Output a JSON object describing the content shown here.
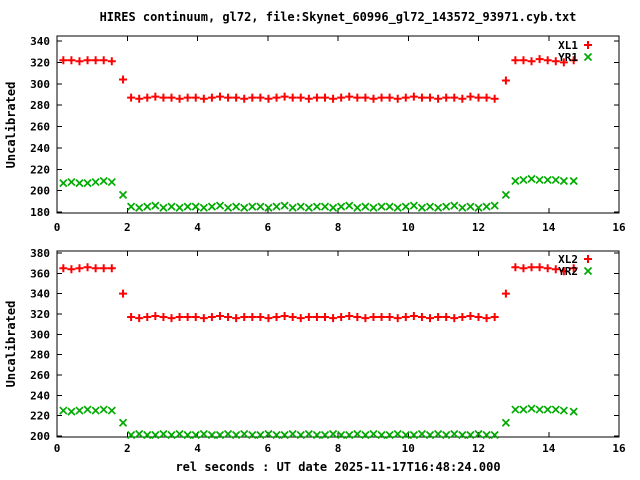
{
  "title": "HIRES continuum, gl72, file:Skynet_60996_gl72_143572_93971.cyb.txt",
  "xlabel": "rel seconds : UT date 2025-11-17T16:48:24.000",
  "colors": {
    "red": "#ff0000",
    "green": "#00aa00",
    "axis": "#000000",
    "background": "#ffffff"
  },
  "chart_data": [
    {
      "type": "scatter",
      "panel": "top",
      "ylabel": "Uncalibrated",
      "xlim": [
        0,
        16
      ],
      "ylim": [
        180,
        340
      ],
      "xticks": [
        0,
        2,
        4,
        6,
        8,
        10,
        12,
        14,
        16
      ],
      "yticks": [
        180,
        200,
        220,
        240,
        260,
        280,
        300,
        320,
        340
      ],
      "grid": false,
      "legend_position": "top-right-inside",
      "x": [
        0.18,
        0.41,
        0.64,
        0.87,
        1.1,
        1.33,
        1.56,
        1.88,
        2.11,
        2.34,
        2.57,
        2.8,
        3.03,
        3.26,
        3.49,
        3.72,
        3.95,
        4.18,
        4.41,
        4.64,
        4.87,
        5.1,
        5.33,
        5.56,
        5.79,
        6.02,
        6.25,
        6.48,
        6.71,
        6.94,
        7.17,
        7.4,
        7.63,
        7.86,
        8.09,
        8.32,
        8.55,
        8.78,
        9.01,
        9.24,
        9.47,
        9.7,
        9.93,
        10.16,
        10.39,
        10.62,
        10.85,
        11.08,
        11.31,
        11.54,
        11.77,
        12.0,
        12.23,
        12.46,
        12.78,
        13.05,
        13.28,
        13.51,
        13.74,
        13.97,
        14.2,
        14.43,
        14.71
      ],
      "series": [
        {
          "name": "XL1",
          "marker": "plus",
          "color": "#ff0000",
          "values": [
            322,
            322,
            321,
            322,
            322,
            322,
            321,
            304,
            287,
            286,
            287,
            288,
            287,
            287,
            286,
            287,
            287,
            286,
            287,
            288,
            287,
            287,
            286,
            287,
            287,
            286,
            287,
            288,
            287,
            287,
            286,
            287,
            287,
            286,
            287,
            288,
            287,
            287,
            286,
            287,
            287,
            286,
            287,
            288,
            287,
            287,
            286,
            287,
            287,
            286,
            288,
            287,
            287,
            286,
            303,
            322,
            322,
            321,
            323,
            322,
            321,
            320,
            322
          ]
        },
        {
          "name": "YR1",
          "marker": "cross",
          "color": "#00aa00",
          "values": [
            207,
            208,
            207,
            207,
            208,
            209,
            208,
            196,
            185,
            184,
            185,
            186,
            184,
            185,
            184,
            185,
            185,
            184,
            185,
            186,
            184,
            185,
            184,
            185,
            185,
            184,
            185,
            186,
            184,
            185,
            184,
            185,
            185,
            184,
            185,
            186,
            184,
            185,
            184,
            185,
            185,
            184,
            185,
            186,
            184,
            185,
            184,
            185,
            186,
            184,
            185,
            184,
            185,
            186,
            196,
            209,
            210,
            211,
            210,
            210,
            210,
            209,
            209
          ]
        }
      ]
    },
    {
      "type": "scatter",
      "panel": "bottom",
      "ylabel": "Uncalibrated",
      "xlim": [
        0,
        16
      ],
      "ylim": [
        200,
        380
      ],
      "xticks": [
        0,
        2,
        4,
        6,
        8,
        10,
        12,
        14,
        16
      ],
      "yticks": [
        200,
        220,
        240,
        260,
        280,
        300,
        320,
        340,
        360,
        380
      ],
      "grid": false,
      "legend_position": "top-right-inside",
      "x": [
        0.18,
        0.41,
        0.64,
        0.87,
        1.1,
        1.33,
        1.56,
        1.88,
        2.11,
        2.34,
        2.57,
        2.8,
        3.03,
        3.26,
        3.49,
        3.72,
        3.95,
        4.18,
        4.41,
        4.64,
        4.87,
        5.1,
        5.33,
        5.56,
        5.79,
        6.02,
        6.25,
        6.48,
        6.71,
        6.94,
        7.17,
        7.4,
        7.63,
        7.86,
        8.09,
        8.32,
        8.55,
        8.78,
        9.01,
        9.24,
        9.47,
        9.7,
        9.93,
        10.16,
        10.39,
        10.62,
        10.85,
        11.08,
        11.31,
        11.54,
        11.77,
        12.0,
        12.23,
        12.46,
        12.78,
        13.05,
        13.28,
        13.51,
        13.74,
        13.97,
        14.2,
        14.43,
        14.71
      ],
      "series": [
        {
          "name": "XL2",
          "marker": "plus",
          "color": "#ff0000",
          "values": [
            365,
            364,
            365,
            366,
            365,
            365,
            365,
            340,
            317,
            316,
            317,
            318,
            317,
            316,
            317,
            317,
            317,
            316,
            317,
            318,
            317,
            316,
            317,
            317,
            317,
            316,
            317,
            318,
            317,
            316,
            317,
            317,
            317,
            316,
            317,
            318,
            317,
            316,
            317,
            317,
            317,
            316,
            317,
            318,
            317,
            316,
            317,
            317,
            316,
            317,
            318,
            317,
            316,
            317,
            340,
            366,
            365,
            366,
            366,
            365,
            364,
            362,
            365
          ]
        },
        {
          "name": "YR2",
          "marker": "cross",
          "color": "#00aa00",
          "values": [
            225,
            224,
            225,
            226,
            225,
            226,
            225,
            213,
            201,
            202,
            201,
            201,
            202,
            201,
            202,
            201,
            201,
            202,
            201,
            201,
            202,
            201,
            202,
            201,
            201,
            202,
            201,
            201,
            202,
            201,
            202,
            201,
            201,
            202,
            201,
            201,
            202,
            201,
            202,
            201,
            201,
            202,
            201,
            201,
            202,
            201,
            202,
            201,
            202,
            201,
            201,
            202,
            201,
            201,
            213,
            226,
            226,
            227,
            226,
            226,
            226,
            225,
            224
          ]
        }
      ]
    }
  ]
}
